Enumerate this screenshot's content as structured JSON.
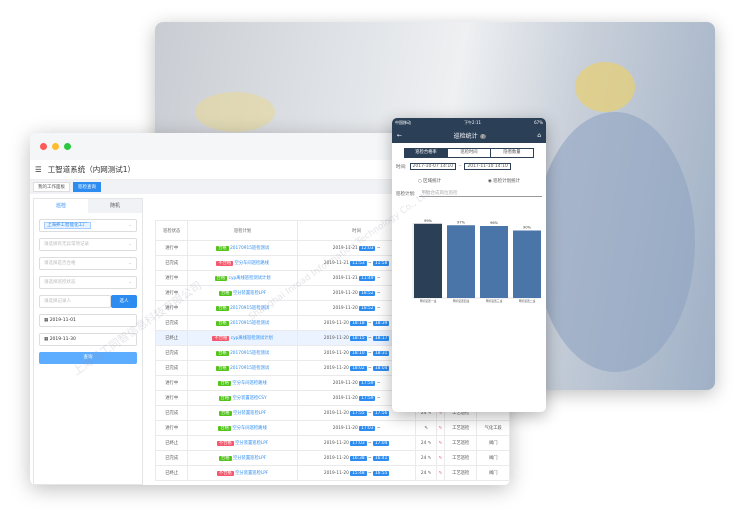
{
  "desktop": {
    "title": "工智道系统（内网测试1）",
    "tabs": [
      {
        "label": "我的工作面板"
      },
      {
        "label": "巡检查询"
      }
    ],
    "sidebar": {
      "tabs": [
        "巡检",
        "随机"
      ],
      "factory_chip": "上海养工智能化工厂",
      "selects": [
        "请选择有无异常项记录",
        "请选择是否合格",
        "请选择巡检状态"
      ],
      "person_placeholder": "请选择记录人",
      "select_person": "选人",
      "date_start": "2019-11-01",
      "date_end": "2019-11-30",
      "query": "查询"
    },
    "table": {
      "headers": [
        "巡检状态",
        "巡检计划",
        "时间",
        "编写",
        "",
        "",
        ""
      ],
      "rows": [
        {
          "status": "进行中",
          "result": "合格",
          "plan": "20170915巡检测试",
          "date": "2019-11-21",
          "start": "12:03",
          "end": "",
          "w": "",
          "type": "",
          "area": ""
        },
        {
          "status": "已完成",
          "result": "不合格",
          "plan": "空分车间巡检路线",
          "date": "2019-11-21",
          "start": "11:53",
          "end": "11:58",
          "w": "",
          "type": "",
          "area": ""
        },
        {
          "status": "进行中",
          "result": "合格",
          "plan": "cyp离线巡检测试计划",
          "date": "2019-11-21",
          "start": "11:49",
          "end": "",
          "w": "",
          "type": "",
          "area": ""
        },
        {
          "status": "进行中",
          "result": "合格",
          "plan": "空分装置巡检LPF",
          "date": "2019-11-20",
          "start": "18:52",
          "end": "",
          "w": "",
          "type": "",
          "area": ""
        },
        {
          "status": "进行中",
          "result": "合格",
          "plan": "20170915巡检测试",
          "date": "2019-11-20",
          "start": "18:52",
          "end": "",
          "w": "",
          "type": "",
          "area": ""
        },
        {
          "status": "已完成",
          "result": "合格",
          "plan": "20170915巡检测试",
          "date": "2019-11-20",
          "start": "18:18",
          "end": "18:39",
          "w": "",
          "type": "",
          "area": ""
        },
        {
          "status": "已终止",
          "result": "不合格",
          "plan": "cyp离线巡检测试计划",
          "date": "2019-11-20",
          "start": "18:15",
          "end": "18:17",
          "w": "",
          "type": "",
          "area": ""
        },
        {
          "status": "已完成",
          "result": "合格",
          "plan": "20170915巡检测试",
          "date": "2019-11-20",
          "start": "18:10",
          "end": "18:31",
          "w": "",
          "type": "",
          "area": ""
        },
        {
          "status": "已完成",
          "result": "合格",
          "plan": "20170915巡检测试",
          "date": "2019-11-20",
          "start": "18:02",
          "end": "18:04",
          "w": "",
          "type": "",
          "area": ""
        },
        {
          "status": "进行中",
          "result": "合格",
          "plan": "空分车间巡检路线",
          "date": "2019-11-20",
          "start": "17:59",
          "end": "",
          "w": "",
          "type": "",
          "area": ""
        },
        {
          "status": "进行中",
          "result": "合格",
          "plan": "空分装置巡检CSY",
          "date": "2019-11-20",
          "start": "17:59",
          "end": "",
          "w": "",
          "type": "",
          "area": ""
        },
        {
          "status": "已完成",
          "result": "合格",
          "plan": "空分装置巡检LPF",
          "date": "2019-11-20",
          "start": "17:55",
          "end": "17:56",
          "w": "24",
          "type": "工艺巡检",
          "area": ""
        },
        {
          "status": "进行中",
          "result": "合格",
          "plan": "空分车间巡检路线",
          "date": "2019-11-20",
          "start": "17:03",
          "end": "",
          "w": "",
          "type": "工艺巡检",
          "area": "气化工段"
        },
        {
          "status": "已终止",
          "result": "不合格",
          "plan": "空分装置巡检LPF",
          "date": "2019-11-20",
          "start": "17:03",
          "end": "17:04",
          "w": "24",
          "type": "工艺巡检",
          "area": "阀门"
        },
        {
          "status": "已完成",
          "result": "合格",
          "plan": "空分装置巡检LPF",
          "date": "2019-11-20",
          "start": "16:38",
          "end": "16:41",
          "w": "24",
          "type": "工艺巡检",
          "area": "阀门"
        },
        {
          "status": "已终止",
          "result": "不合格",
          "plan": "空分装置巡检LPF",
          "date": "2019-11-20",
          "start": "15:48",
          "end": "16:55",
          "w": "24",
          "type": "工艺巡检",
          "area": "阀门"
        }
      ]
    }
  },
  "mobile": {
    "status_bar": {
      "carrier": "中国移动",
      "time": "下午2:11",
      "battery": "67%"
    },
    "title": "巡检统计",
    "segments": [
      "巡检合格率",
      "巡检时间",
      "隐患数量"
    ],
    "time_label": "时间:",
    "from": "2017-10-07 14:10",
    "to": "2017-11-10 14:10",
    "radios": [
      {
        "label": "区域统计",
        "checked": false
      },
      {
        "label": "巡检计划统计",
        "checked": true
      }
    ],
    "plan_label": "巡检计划:",
    "plan_placeholder": "甲醇合成岗位巡检"
  },
  "chart_data": {
    "type": "bar",
    "categories": [
      "甲醇装置一班",
      "甲醇装置四班",
      "甲醇装置三班",
      "甲醇装置二班"
    ],
    "values": [
      99,
      97,
      96,
      90
    ],
    "data_labels": [
      "99%",
      "97%",
      "96%",
      "90%"
    ],
    "ylim": [
      0,
      100
    ],
    "colors": [
      "#2b3f57",
      "#4a75a8",
      "#4a75a8",
      "#4a75a8"
    ]
  },
  "watermark": [
    "上海异工同智信息科技有限公司",
    "Shanghai Inroad Information Technology Co., Ltd."
  ]
}
